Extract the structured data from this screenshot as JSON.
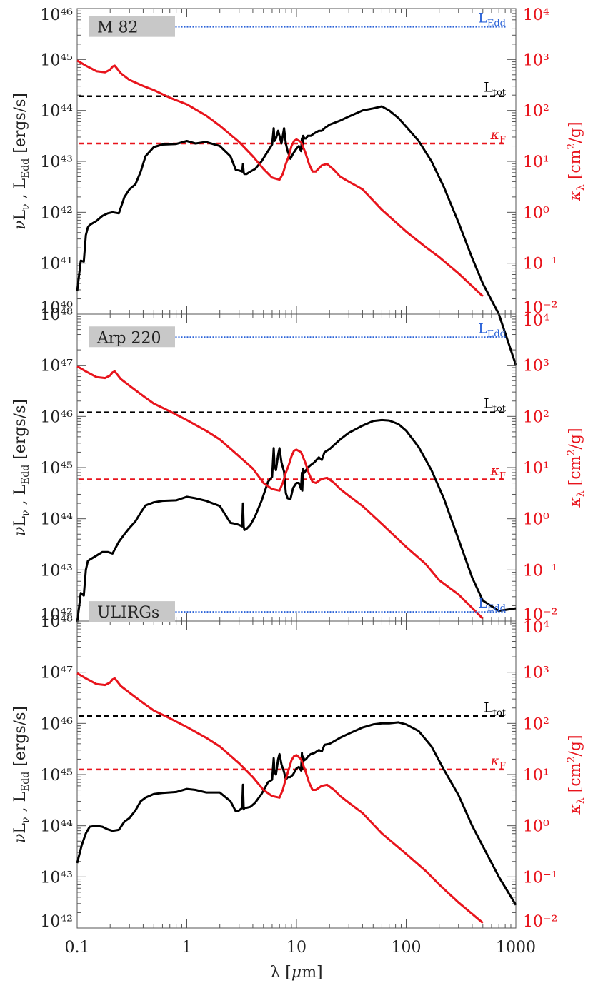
{
  "xlabel": "λ [μm]",
  "left_axis_label": "νL_ν , L_Edd [ergs/s]",
  "right_axis_label": "κ_λ [cm²/g]",
  "line_labels": {
    "ledd": "L_Edd",
    "ltot": "L_tot",
    "kappaf": "κ_F"
  },
  "colors": {
    "sed": "#000000",
    "kappa": "#e8141c",
    "ledd": "#2a62d8",
    "ltot": "#000000",
    "kappaf": "#e8141c",
    "label_box": "#c8c8c8"
  },
  "chart_data": [
    {
      "type": "line",
      "title": "M 82",
      "xscale": "log",
      "xlim": [
        0.1,
        1000
      ],
      "xticks": [
        "0.1",
        "1",
        "10",
        "100",
        "1000"
      ],
      "yscale": "log",
      "ylim_exp": [
        40,
        46
      ],
      "y2scale": "log",
      "y2lim_exp": [
        -2,
        4
      ],
      "L_Edd_exp": 45.64,
      "L_tot_exp": 44.28,
      "kappa_F_exp": 1.35,
      "series": [
        {
          "axis": "left",
          "x": [
            0.1,
            0.108,
            0.115,
            0.12,
            0.125,
            0.13,
            0.15,
            0.17,
            0.19,
            0.21,
            0.24,
            0.27,
            0.3,
            0.34,
            0.38,
            0.42,
            0.5,
            0.6,
            0.8,
            1.0,
            1.2,
            1.5,
            2.0,
            2.5,
            2.8,
            3.0,
            3.2,
            3.25,
            3.3,
            3.35,
            3.5,
            3.8,
            4.2,
            4.8,
            5.5,
            6.0,
            6.2,
            6.3,
            6.5,
            6.8,
            7.0,
            7.3,
            7.7,
            8.0,
            8.3,
            8.8,
            9.3,
            10.0,
            10.5,
            11.0,
            11.2,
            11.3,
            11.5,
            11.8,
            12.2,
            12.7,
            13.5,
            14.5,
            16.0,
            17.0,
            18.0,
            20.0,
            25.0,
            30.0,
            40.0,
            50.0,
            60.0,
            70.0,
            85.0,
            100.0,
            130.0,
            170.0,
            220.0,
            300.0,
            400.0,
            500.0,
            700.0,
            1000.0
          ],
          "y": [
            40.45,
            41.05,
            41.03,
            41.55,
            41.7,
            41.75,
            41.83,
            41.93,
            41.98,
            42.0,
            41.98,
            42.3,
            42.45,
            42.55,
            42.8,
            43.1,
            43.28,
            43.33,
            43.34,
            43.4,
            43.35,
            43.38,
            43.3,
            43.1,
            42.83,
            42.82,
            42.8,
            42.95,
            42.78,
            42.75,
            42.75,
            42.8,
            42.85,
            43.0,
            43.2,
            43.33,
            43.65,
            43.4,
            43.45,
            43.6,
            43.5,
            43.35,
            43.65,
            43.35,
            43.2,
            43.05,
            43.15,
            43.25,
            43.3,
            43.2,
            43.45,
            43.25,
            43.5,
            43.45,
            43.45,
            43.5,
            43.5,
            43.55,
            43.6,
            43.6,
            43.65,
            43.72,
            43.8,
            43.88,
            44.0,
            44.04,
            44.08,
            44.0,
            43.85,
            43.68,
            43.4,
            43.0,
            42.5,
            41.8,
            41.1,
            40.6,
            40.0,
            39.0
          ]
        },
        {
          "axis": "right",
          "x": [
            0.1,
            0.12,
            0.15,
            0.18,
            0.2,
            0.21,
            0.22,
            0.23,
            0.25,
            0.3,
            0.4,
            0.5,
            0.7,
            1.0,
            1.5,
            2.0,
            3.0,
            4.0,
            5.0,
            6.0,
            7.0,
            7.5,
            8.0,
            8.5,
            9.0,
            9.5,
            10.0,
            11.0,
            12.0,
            13.0,
            14.0,
            15.0,
            17.0,
            19.0,
            22.0,
            25.0,
            30.0,
            40.0,
            60.0,
            100.0,
            150.0,
            200.0,
            300.0,
            500.0
          ],
          "y": [
            2.98,
            2.88,
            2.77,
            2.75,
            2.8,
            2.86,
            2.88,
            2.83,
            2.73,
            2.6,
            2.48,
            2.4,
            2.25,
            2.12,
            1.9,
            1.7,
            1.38,
            1.1,
            0.85,
            0.68,
            0.64,
            0.75,
            0.95,
            1.1,
            1.3,
            1.4,
            1.43,
            1.38,
            1.18,
            0.95,
            0.8,
            0.8,
            0.92,
            0.95,
            0.83,
            0.7,
            0.6,
            0.45,
            0.05,
            -0.38,
            -0.68,
            -0.88,
            -1.2,
            -1.65
          ]
        }
      ]
    },
    {
      "type": "line",
      "title": "Arp 220",
      "xscale": "log",
      "xlim": [
        0.1,
        1000
      ],
      "yscale": "log",
      "ylim_exp": [
        42,
        48
      ],
      "y2scale": "log",
      "y2lim_exp": [
        -2,
        4
      ],
      "L_Edd_exp": 47.55,
      "L_tot_exp": 46.08,
      "kappa_F_exp": 0.77,
      "series": [
        {
          "axis": "left",
          "x": [
            0.1,
            0.108,
            0.115,
            0.12,
            0.125,
            0.13,
            0.15,
            0.17,
            0.19,
            0.21,
            0.24,
            0.27,
            0.3,
            0.34,
            0.38,
            0.42,
            0.5,
            0.6,
            0.8,
            1.0,
            1.2,
            1.5,
            2.0,
            2.5,
            2.8,
            3.0,
            3.2,
            3.25,
            3.3,
            3.35,
            3.5,
            3.8,
            4.2,
            4.8,
            5.5,
            6.0,
            6.2,
            6.3,
            6.5,
            6.8,
            7.0,
            7.3,
            7.7,
            8.0,
            8.3,
            8.8,
            9.3,
            10.0,
            10.5,
            11.0,
            11.2,
            11.3,
            11.5,
            11.8,
            12.2,
            12.7,
            13.5,
            14.5,
            16.0,
            17.0,
            18.0,
            20.0,
            25.0,
            30.0,
            40.0,
            50.0,
            60.0,
            70.0,
            85.0,
            100.0,
            130.0,
            170.0,
            220.0,
            300.0,
            400.0,
            500.0,
            700.0,
            1000.0
          ],
          "y": [
            41.97,
            42.55,
            42.5,
            43.0,
            43.17,
            43.2,
            43.28,
            43.35,
            43.35,
            43.32,
            43.55,
            43.7,
            43.82,
            43.95,
            44.12,
            44.26,
            44.32,
            44.35,
            44.36,
            44.43,
            44.4,
            44.35,
            44.25,
            43.92,
            43.9,
            43.88,
            43.85,
            44.3,
            43.85,
            43.78,
            43.8,
            43.88,
            44.05,
            44.35,
            44.72,
            44.82,
            45.38,
            45.05,
            44.95,
            45.25,
            45.38,
            45.1,
            44.92,
            44.5,
            44.4,
            44.38,
            44.6,
            44.7,
            44.7,
            44.58,
            44.9,
            44.55,
            44.98,
            44.9,
            44.95,
            45.0,
            45.05,
            45.1,
            45.2,
            45.15,
            45.3,
            45.36,
            45.55,
            45.68,
            45.82,
            45.91,
            45.93,
            45.92,
            45.85,
            45.72,
            45.4,
            44.95,
            44.4,
            43.6,
            42.85,
            42.4,
            42.2,
            42.25
          ]
        },
        {
          "axis": "right",
          "x": [
            0.1,
            0.12,
            0.15,
            0.18,
            0.2,
            0.21,
            0.22,
            0.23,
            0.25,
            0.3,
            0.4,
            0.5,
            0.7,
            1.0,
            1.5,
            2.0,
            3.0,
            4.0,
            5.0,
            6.0,
            7.0,
            7.5,
            8.0,
            8.5,
            9.0,
            9.5,
            10.0,
            11.0,
            12.0,
            13.0,
            14.0,
            15.0,
            17.0,
            19.0,
            22.0,
            25.0,
            30.0,
            40.0,
            60.0,
            100.0,
            150.0,
            200.0,
            300.0,
            500.0
          ],
          "y": [
            2.98,
            2.88,
            2.77,
            2.75,
            2.8,
            2.86,
            2.88,
            2.83,
            2.73,
            2.6,
            2.4,
            2.25,
            2.1,
            1.93,
            1.72,
            1.55,
            1.22,
            0.98,
            0.7,
            0.58,
            0.55,
            0.7,
            0.9,
            1.05,
            1.22,
            1.33,
            1.35,
            1.3,
            1.1,
            0.88,
            0.72,
            0.7,
            0.78,
            0.8,
            0.7,
            0.58,
            0.45,
            0.25,
            -0.1,
            -0.55,
            -0.88,
            -1.2,
            -1.48,
            -1.95
          ]
        }
      ]
    },
    {
      "type": "line",
      "title": "ULIRGs",
      "xscale": "log",
      "xlim": [
        0.1,
        1000
      ],
      "yscale": "log",
      "ylim_exp": [
        42,
        48
      ],
      "y2scale": "log",
      "y2lim_exp": [
        -2,
        4
      ],
      "L_Edd_exp": 48.18,
      "L_tot_exp": 46.14,
      "kappa_F_exp": 1.1,
      "series": [
        {
          "axis": "left",
          "x": [
            0.1,
            0.11,
            0.12,
            0.13,
            0.15,
            0.17,
            0.19,
            0.21,
            0.24,
            0.27,
            0.3,
            0.34,
            0.38,
            0.42,
            0.5,
            0.6,
            0.8,
            1.0,
            1.2,
            1.5,
            2.0,
            2.5,
            2.8,
            3.0,
            3.2,
            3.25,
            3.3,
            3.35,
            3.5,
            3.8,
            4.2,
            4.8,
            5.5,
            6.0,
            6.2,
            6.3,
            6.5,
            6.8,
            7.0,
            7.3,
            7.7,
            8.0,
            8.3,
            8.8,
            9.3,
            10.0,
            10.5,
            11.0,
            11.2,
            11.3,
            11.5,
            11.8,
            12.2,
            12.7,
            13.5,
            14.5,
            16.0,
            17.0,
            18.0,
            20.0,
            25.0,
            30.0,
            40.0,
            50.0,
            60.0,
            70.0,
            85.0,
            100.0,
            130.0,
            170.0,
            220.0,
            300.0,
            400.0,
            500.0,
            700.0,
            1000.0
          ],
          "y": [
            43.27,
            43.62,
            43.85,
            43.98,
            44.0,
            43.98,
            43.93,
            43.9,
            43.92,
            44.08,
            44.15,
            44.3,
            44.48,
            44.55,
            44.62,
            44.64,
            44.66,
            44.72,
            44.7,
            44.65,
            44.65,
            44.48,
            44.28,
            44.3,
            44.35,
            44.8,
            44.32,
            44.35,
            44.35,
            44.37,
            44.45,
            44.62,
            44.85,
            44.9,
            45.32,
            45.05,
            45.0,
            45.3,
            45.4,
            45.2,
            45.05,
            44.9,
            44.95,
            44.95,
            45.0,
            45.12,
            45.15,
            45.08,
            45.42,
            45.1,
            45.35,
            45.28,
            45.3,
            45.35,
            45.4,
            45.42,
            45.48,
            45.45,
            45.58,
            45.6,
            45.72,
            45.8,
            45.92,
            45.98,
            46.0,
            46.0,
            46.02,
            45.98,
            45.85,
            45.55,
            45.1,
            44.6,
            44.0,
            43.6,
            43.0,
            42.45
          ]
        },
        {
          "axis": "right",
          "x": [
            0.1,
            0.12,
            0.15,
            0.18,
            0.2,
            0.21,
            0.22,
            0.23,
            0.25,
            0.3,
            0.4,
            0.5,
            0.7,
            1.0,
            1.5,
            2.0,
            3.0,
            4.0,
            5.0,
            6.0,
            7.0,
            7.5,
            8.0,
            8.5,
            9.0,
            9.5,
            10.0,
            11.0,
            12.0,
            13.0,
            14.0,
            15.0,
            17.0,
            19.0,
            22.0,
            25.0,
            30.0,
            40.0,
            60.0,
            100.0,
            150.0,
            200.0,
            300.0,
            500.0
          ],
          "y": [
            2.98,
            2.88,
            2.77,
            2.75,
            2.8,
            2.86,
            2.88,
            2.83,
            2.73,
            2.6,
            2.4,
            2.25,
            2.1,
            1.93,
            1.72,
            1.55,
            1.22,
            0.95,
            0.7,
            0.58,
            0.55,
            0.7,
            0.92,
            1.1,
            1.28,
            1.36,
            1.38,
            1.3,
            1.08,
            0.85,
            0.7,
            0.7,
            0.78,
            0.8,
            0.7,
            0.58,
            0.45,
            0.25,
            -0.15,
            -0.55,
            -0.88,
            -1.15,
            -1.5,
            -1.9
          ]
        }
      ]
    }
  ]
}
